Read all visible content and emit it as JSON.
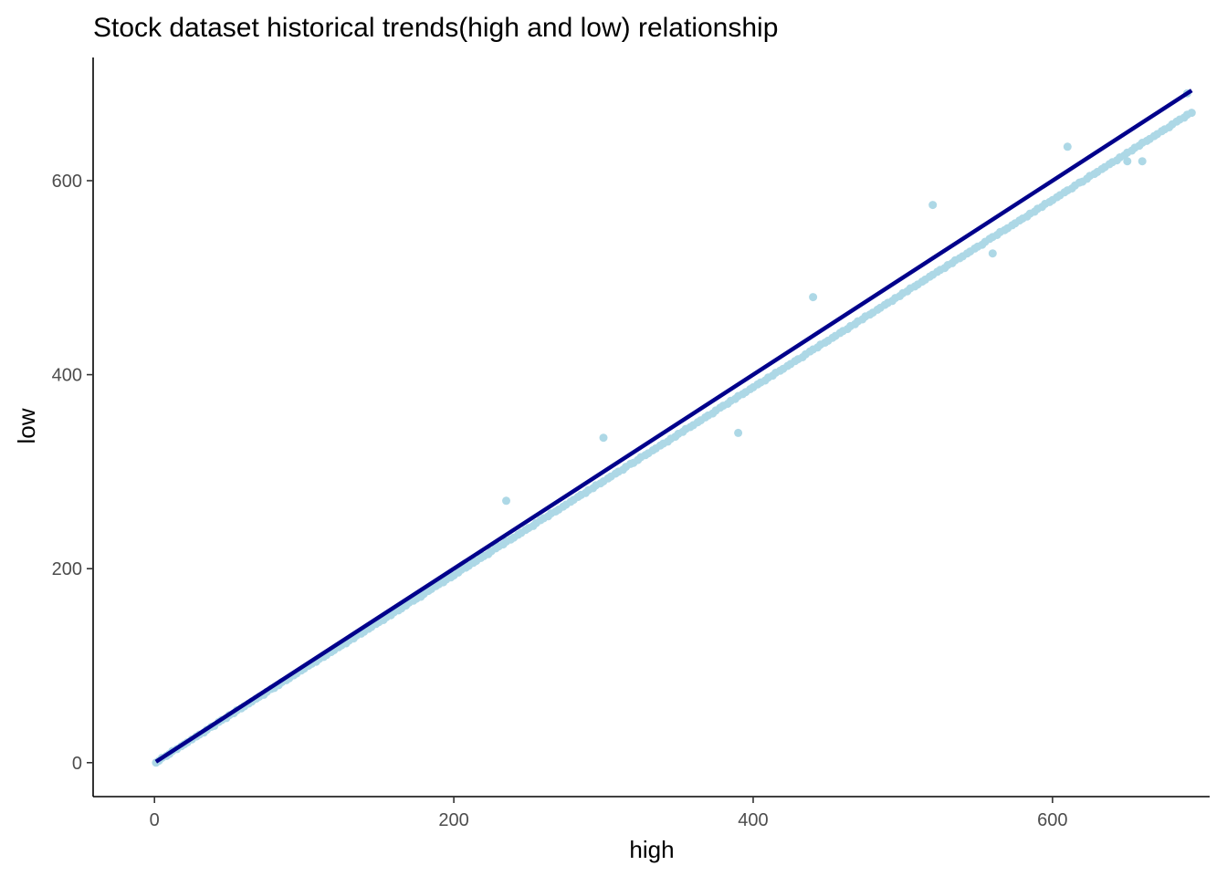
{
  "chart_data": {
    "type": "scatter",
    "title": "Stock dataset historical trends(high and low) relationship",
    "xlabel": "high",
    "ylabel": "low",
    "xlim": [
      -41,
      705
    ],
    "ylim": [
      -35,
      727
    ],
    "x_ticks": [
      "0",
      "200",
      "400",
      "600"
    ],
    "x_tick_values": [
      0,
      200,
      400,
      600
    ],
    "y_ticks": [
      "0",
      "200",
      "400",
      "600"
    ],
    "y_tick_values": [
      0,
      200,
      400,
      600
    ],
    "grid": false,
    "legend": "none",
    "point_color": "#add8e6",
    "line_color": "#00008b",
    "series": [
      {
        "kind": "points",
        "x": [
          1,
          3,
          5,
          8,
          10,
          12,
          15,
          18,
          20,
          22,
          25,
          28,
          30,
          33,
          35,
          38,
          40,
          43,
          45,
          48,
          50,
          53,
          55,
          58,
          60,
          63,
          65,
          68,
          70,
          73,
          75,
          78,
          80,
          83,
          85,
          88,
          90,
          93,
          95,
          98,
          100,
          103,
          105,
          108,
          110,
          113,
          115,
          118,
          120,
          123,
          125,
          128,
          130,
          133,
          135,
          138,
          140,
          143,
          145,
          148,
          150,
          153,
          155,
          158,
          160,
          163,
          165,
          168,
          170,
          173,
          175,
          178,
          180,
          183,
          185,
          188,
          190,
          193,
          195,
          198,
          200,
          203,
          205,
          208,
          210,
          213,
          215,
          218,
          220,
          223,
          225,
          228,
          230,
          233,
          235,
          238,
          240,
          243,
          245,
          248,
          250,
          253,
          255,
          258,
          260,
          263,
          265,
          268,
          270,
          273,
          275,
          278,
          280,
          283,
          285,
          288,
          290,
          293,
          295,
          298,
          300,
          303,
          305,
          308,
          310,
          313,
          315,
          318,
          320,
          323,
          325,
          328,
          330,
          333,
          335,
          338,
          340,
          343,
          345,
          348,
          350,
          353,
          355,
          358,
          360,
          363,
          365,
          368,
          370,
          373,
          375,
          378,
          380,
          383,
          385,
          388,
          390,
          393,
          395,
          398,
          400,
          403,
          405,
          408,
          410,
          413,
          415,
          418,
          420,
          423,
          425,
          428,
          430,
          433,
          435,
          438,
          440,
          443,
          445,
          448,
          450,
          453,
          455,
          458,
          460,
          463,
          465,
          468,
          470,
          473,
          475,
          478,
          480,
          483,
          485,
          488,
          490,
          493,
          495,
          498,
          500,
          503,
          505,
          508,
          510,
          513,
          515,
          518,
          520,
          523,
          525,
          528,
          530,
          533,
          535,
          538,
          540,
          543,
          545,
          548,
          550,
          553,
          555,
          558,
          560,
          563,
          565,
          568,
          570,
          573,
          575,
          578,
          580,
          583,
          585,
          588,
          590,
          593,
          595,
          598,
          600,
          603,
          605,
          608,
          610,
          613,
          615,
          618,
          620,
          623,
          625,
          628,
          630,
          633,
          635,
          638,
          640,
          643,
          645,
          648,
          650,
          653,
          655,
          658,
          660,
          663,
          665,
          668,
          670,
          673,
          675,
          678,
          680,
          683,
          685,
          688,
          690,
          693,
          235,
          300,
          390,
          440,
          520,
          560,
          610,
          650,
          660,
          690
        ],
        "y": [
          0,
          2,
          5,
          7,
          9,
          12,
          14,
          17,
          19,
          21,
          24,
          27,
          29,
          31,
          34,
          37,
          38,
          42,
          44,
          46,
          49,
          51,
          54,
          56,
          58,
          61,
          63,
          66,
          68,
          70,
          73,
          76,
          77,
          80,
          83,
          85,
          87,
          90,
          92,
          95,
          97,
          100,
          102,
          104,
          107,
          109,
          111,
          114,
          116,
          119,
          121,
          123,
          126,
          128,
          131,
          133,
          135,
          138,
          140,
          143,
          145,
          147,
          150,
          152,
          155,
          157,
          159,
          162,
          165,
          167,
          169,
          171,
          174,
          177,
          179,
          182,
          184,
          186,
          189,
          191,
          193,
          196,
          199,
          201,
          203,
          206,
          208,
          211,
          213,
          215,
          218,
          221,
          223,
          225,
          228,
          230,
          232,
          235,
          237,
          240,
          242,
          244,
          247,
          250,
          252,
          254,
          257,
          259,
          261,
          264,
          266,
          269,
          271,
          274,
          276,
          278,
          281,
          283,
          286,
          288,
          290,
          293,
          295,
          298,
          300,
          302,
          305,
          308,
          309,
          312,
          315,
          317,
          319,
          322,
          324,
          327,
          329,
          331,
          334,
          336,
          339,
          341,
          344,
          346,
          348,
          351,
          353,
          356,
          358,
          360,
          363,
          366,
          368,
          370,
          373,
          375,
          378,
          380,
          382,
          385,
          387,
          390,
          392,
          394,
          397,
          399,
          402,
          404,
          406,
          409,
          411,
          414,
          416,
          418,
          421,
          424,
          426,
          428,
          431,
          433,
          435,
          438,
          440,
          443,
          445,
          447,
          450,
          452,
          455,
          457,
          460,
          462,
          464,
          467,
          469,
          472,
          474,
          476,
          479,
          481,
          484,
          486,
          489,
          491,
          493,
          496,
          498,
          501,
          503,
          506,
          508,
          510,
          513,
          515,
          518,
          520,
          522,
          525,
          527,
          530,
          532,
          534,
          537,
          540,
          542,
          544,
          547,
          549,
          551,
          554,
          556,
          559,
          561,
          563,
          566,
          568,
          571,
          573,
          576,
          578,
          580,
          583,
          585,
          588,
          590,
          592,
          595,
          598,
          599,
          602,
          605,
          607,
          609,
          612,
          614,
          617,
          619,
          621,
          624,
          626,
          629,
          631,
          634,
          636,
          639,
          641,
          643,
          646,
          648,
          651,
          653,
          655,
          658,
          661,
          663,
          665,
          668,
          670,
          270,
          335,
          340,
          480,
          575,
          525,
          635,
          620,
          620,
          690
        ]
      },
      {
        "kind": "fit-line",
        "x": [
          1,
          693
        ],
        "y": [
          1,
          693
        ]
      }
    ]
  }
}
